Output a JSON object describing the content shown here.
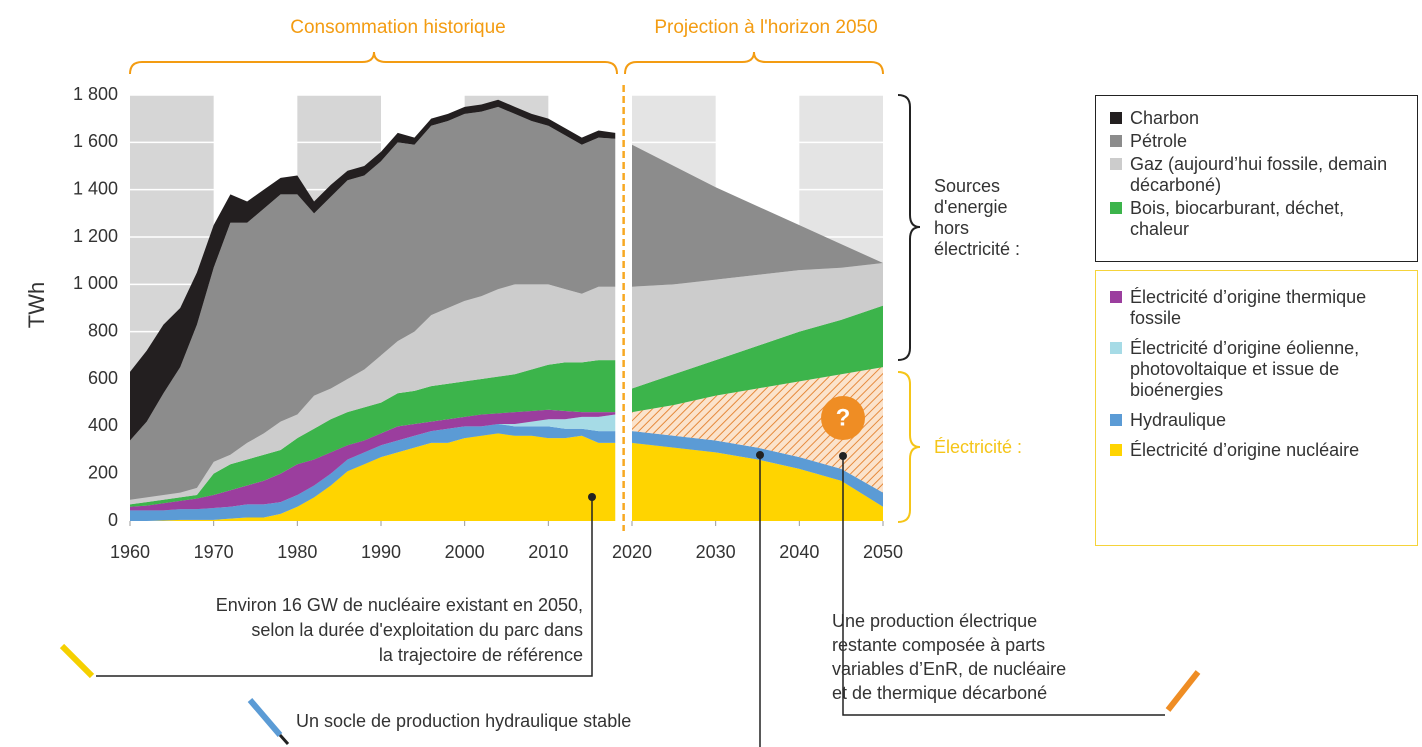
{
  "chart_data": {
    "type": "stacked_area",
    "y_label": "TWh",
    "x": [
      1960,
      1962,
      1964,
      1966,
      1968,
      1970,
      1972,
      1974,
      1976,
      1978,
      1980,
      1982,
      1984,
      1986,
      1988,
      1990,
      1992,
      1994,
      1996,
      1998,
      2000,
      2002,
      2004,
      2006,
      2008,
      2010,
      2012,
      2014,
      2016,
      2018,
      2019,
      2020,
      2025,
      2030,
      2035,
      2040,
      2045,
      2050
    ],
    "xlim": [
      1960,
      2050
    ],
    "xticks": [
      1960,
      1970,
      1980,
      1990,
      2000,
      2010,
      2020,
      2030,
      2040,
      2050
    ],
    "ylim": [
      0,
      1800
    ],
    "yticks": [
      0,
      200,
      400,
      600,
      800,
      {
        "value": 1000,
        "label": "1 000"
      },
      {
        "value": 1200,
        "label": "1 200"
      },
      {
        "value": 1400,
        "label": "1 400"
      },
      {
        "value": 1600,
        "label": "1 600"
      },
      {
        "value": 1800,
        "label": "1 800"
      }
    ],
    "grid": true,
    "series": [
      {
        "name": "Charbon",
        "color": "#231f20",
        "values": [
          290,
          300,
          290,
          250,
          220,
          180,
          120,
          90,
          80,
          70,
          80,
          50,
          50,
          40,
          40,
          40,
          40,
          30,
          30,
          30,
          30,
          30,
          30,
          30,
          30,
          30,
          30,
          30,
          30,
          25,
          null,
          0,
          0,
          0,
          0,
          0,
          0,
          0
        ]
      },
      {
        "name": "Pétrole",
        "color": "#8c8c8c",
        "values": [
          250,
          320,
          430,
          530,
          690,
          820,
          980,
          930,
          950,
          960,
          930,
          770,
          810,
          840,
          820,
          820,
          840,
          790,
          800,
          790,
          790,
          780,
          770,
          720,
          690,
          670,
          650,
          630,
          630,
          625,
          null,
          600,
          500,
          390,
          290,
          190,
          100,
          0
        ]
      },
      {
        "name": "Gaz (aujourd’hui fossile, demain décarboné)",
        "color": "#cccccc",
        "values": [
          20,
          20,
          20,
          20,
          30,
          50,
          40,
          70,
          90,
          120,
          100,
          140,
          130,
          140,
          160,
          200,
          220,
          250,
          300,
          320,
          340,
          350,
          370,
          380,
          360,
          340,
          310,
          290,
          310,
          310,
          null,
          430,
          380,
          340,
          300,
          260,
          220,
          180
        ]
      },
      {
        "name": "Bois, biocarburant, déchet, chaleur",
        "color": "#3cb44b",
        "values": [
          10,
          15,
          15,
          15,
          15,
          90,
          110,
          110,
          110,
          100,
          110,
          130,
          140,
          140,
          140,
          130,
          140,
          140,
          150,
          150,
          150,
          150,
          155,
          160,
          175,
          190,
          205,
          210,
          220,
          220,
          null,
          100,
          130,
          150,
          180,
          210,
          230,
          260
        ]
      },
      {
        "name": "Électricité d’origine thermique fossile",
        "color": "#9b3e9e",
        "values": [
          15,
          20,
          30,
          35,
          45,
          55,
          70,
          80,
          100,
          120,
          130,
          110,
          90,
          60,
          50,
          50,
          60,
          50,
          40,
          40,
          40,
          50,
          45,
          50,
          45,
          40,
          35,
          20,
          20,
          10,
          null,
          0,
          0,
          0,
          0,
          0,
          0,
          0
        ]
      },
      {
        "name": "Électricité d’origine éolienne, photovoltaique et issue de bioénergies",
        "color": "#a6dbe6",
        "values": [
          0,
          0,
          0,
          0,
          0,
          0,
          0,
          0,
          0,
          0,
          0,
          0,
          0,
          0,
          0,
          0,
          0,
          0,
          0,
          0,
          0,
          0,
          0,
          10,
          20,
          30,
          40,
          50,
          60,
          70,
          null,
          0,
          0,
          0,
          0,
          0,
          0,
          0
        ]
      },
      {
        "color": "#ee8a2c",
        "pattern": "hatch",
        "values": [
          0,
          0,
          0,
          0,
          0,
          0,
          0,
          0,
          0,
          0,
          0,
          0,
          0,
          0,
          0,
          0,
          0,
          0,
          0,
          0,
          0,
          0,
          0,
          0,
          0,
          0,
          0,
          0,
          0,
          0,
          null,
          80,
          130,
          190,
          250,
          320,
          400,
          530
        ]
      },
      {
        "name": "Hydraulique",
        "color": "#5b9bd5",
        "values": [
          45,
          45,
          43,
          45,
          45,
          50,
          50,
          55,
          55,
          50,
          50,
          50,
          50,
          50,
          50,
          50,
          50,
          50,
          50,
          60,
          50,
          40,
          40,
          40,
          40,
          50,
          40,
          30,
          50,
          50,
          null,
          50,
          50,
          50,
          50,
          50,
          50,
          60
        ]
      },
      {
        "name": "Électricité d’origine nucléaire",
        "color": "#ffd400",
        "values": [
          0,
          0,
          2,
          5,
          5,
          5,
          10,
          15,
          15,
          30,
          60,
          100,
          150,
          210,
          240,
          270,
          290,
          310,
          330,
          330,
          350,
          360,
          370,
          360,
          360,
          350,
          350,
          360,
          330,
          330,
          null,
          330,
          310,
          290,
          260,
          220,
          170,
          60
        ]
      }
    ],
    "annotations": {
      "historical": "Consommation historique",
      "projection": "Projection à l'horizon 2050",
      "non_electric": "Sources d'energie hors électricité :",
      "electric": "Électricité :",
      "question": "?",
      "nuclear_note": [
        "Environ 16 GW de nucléaire existant en 2050,",
        "selon la durée d'exploitation du parc dans",
        "la trajectoire de référence"
      ],
      "hydro_note": "Un socle de production hydraulique stable",
      "remaining_note": [
        "Une production électrique",
        "restante composée à parts",
        "variables d’EnR, de nucléaire",
        "et de thermique décarboné"
      ]
    }
  }
}
